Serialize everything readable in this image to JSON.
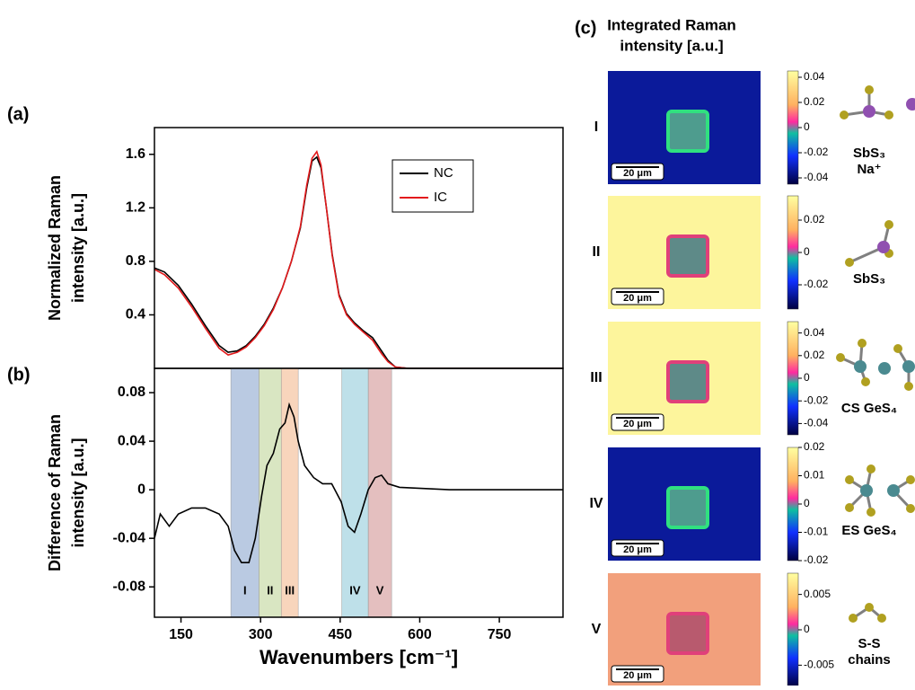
{
  "chart_data": [
    {
      "type": "line",
      "panel_label": "(a)",
      "y_label_lines": [
        "Normalized Raman",
        "intensity [a.u.]"
      ],
      "xlim": [
        100,
        870
      ],
      "ylim": [
        0,
        1.8
      ],
      "yticks": [
        0.4,
        0.8,
        1.2,
        1.6
      ],
      "legend_position": "upper right",
      "x": [
        100,
        119,
        145,
        170,
        196,
        222,
        239,
        256,
        273,
        290,
        307,
        324,
        341,
        358,
        375,
        387,
        397,
        406,
        414,
        424,
        435,
        448,
        462,
        477,
        494,
        511,
        528,
        540,
        554,
        579,
        656,
        758,
        870
      ],
      "series": [
        {
          "name": "NC",
          "color": "#000000",
          "values": [
            0.75,
            0.72,
            0.62,
            0.48,
            0.32,
            0.17,
            0.12,
            0.13,
            0.17,
            0.24,
            0.33,
            0.45,
            0.6,
            0.8,
            1.05,
            1.35,
            1.55,
            1.58,
            1.5,
            1.2,
            0.85,
            0.55,
            0.41,
            0.34,
            0.28,
            0.23,
            0.13,
            0.06,
            0.01,
            0,
            0,
            0,
            0
          ]
        },
        {
          "name": "IC",
          "color": "#e31a1c",
          "values": [
            0.74,
            0.7,
            0.6,
            0.46,
            0.3,
            0.15,
            0.1,
            0.12,
            0.16,
            0.23,
            0.32,
            0.44,
            0.6,
            0.8,
            1.06,
            1.37,
            1.57,
            1.62,
            1.52,
            1.2,
            0.84,
            0.54,
            0.4,
            0.33,
            0.27,
            0.21,
            0.11,
            0.05,
            0.01,
            0,
            0,
            0,
            0
          ]
        }
      ]
    },
    {
      "type": "line",
      "panel_label": "(b)",
      "y_label_lines": [
        "Difference of Raman",
        "intensity [a.u.]"
      ],
      "x_label": "Wavenumbers [cm⁻¹]",
      "xlim": [
        100,
        870
      ],
      "xticks": [
        150,
        300,
        450,
        600,
        750
      ],
      "ylim": [
        -0.105,
        0.1
      ],
      "yticks": [
        -0.08,
        -0.04,
        0,
        0.04,
        0.08
      ],
      "bands": [
        {
          "label": "I",
          "range": [
            244,
            297
          ],
          "color": "#9db4d6"
        },
        {
          "label": "II",
          "range": [
            297,
            339
          ],
          "color": "#c9dba8"
        },
        {
          "label": "III",
          "range": [
            339,
            371
          ],
          "color": "#f5c3a0"
        },
        {
          "label": "IV",
          "range": [
            453,
            503
          ],
          "color": "#a3d3e0"
        },
        {
          "label": "V",
          "range": [
            503,
            547
          ],
          "color": "#d8a4a4"
        }
      ],
      "x": [
        100,
        111,
        128,
        145,
        170,
        196,
        222,
        239,
        251,
        264,
        278,
        290,
        302,
        312,
        324,
        336,
        346,
        354,
        363,
        371,
        383,
        400,
        417,
        434,
        452,
        465,
        477,
        489,
        503,
        516,
        528,
        540,
        562,
        656,
        758,
        870
      ],
      "series": [
        {
          "color": "#000000",
          "values": [
            -0.04,
            -0.02,
            -0.03,
            -0.02,
            -0.015,
            -0.015,
            -0.02,
            -0.03,
            -0.05,
            -0.06,
            -0.06,
            -0.04,
            -0.005,
            0.02,
            0.03,
            0.05,
            0.055,
            0.07,
            0.06,
            0.04,
            0.02,
            0.01,
            0.005,
            0.005,
            -0.01,
            -0.03,
            -0.035,
            -0.02,
            0,
            0.01,
            0.012,
            0.005,
            0.002,
            0,
            0,
            0
          ]
        }
      ]
    }
  ],
  "panel_c": {
    "panel_label": "(c)",
    "title_lines": [
      "Integrated Raman",
      "intensity [a.u.]"
    ],
    "scale_bar": "20 μm",
    "rows": [
      {
        "label": "I",
        "clim": [
          -0.045,
          0.045
        ],
        "ticks": [
          0.04,
          0.02,
          0,
          -0.02,
          -0.04
        ],
        "molecule_lines": [
          "SbS₃",
          "Na⁺"
        ]
      },
      {
        "label": "II",
        "clim": [
          -0.035,
          0.035
        ],
        "ticks": [
          0.02,
          0,
          -0.02
        ],
        "molecule_lines": [
          "SbS₃"
        ]
      },
      {
        "label": "III",
        "clim": [
          -0.05,
          0.05
        ],
        "ticks": [
          0.04,
          0.02,
          0,
          -0.02,
          -0.04
        ],
        "molecule_lines": [
          "CS GeS₄"
        ]
      },
      {
        "label": "IV",
        "clim": [
          -0.02,
          0.02
        ],
        "ticks": [
          0.02,
          0.01,
          0,
          -0.01,
          -0.02
        ],
        "molecule_lines": [
          "ES GeS₄"
        ]
      },
      {
        "label": "V",
        "clim": [
          -0.008,
          0.008
        ],
        "ticks": [
          0.005,
          0,
          -0.005
        ],
        "molecule_lines": [
          "S-S",
          "chains"
        ]
      }
    ]
  }
}
